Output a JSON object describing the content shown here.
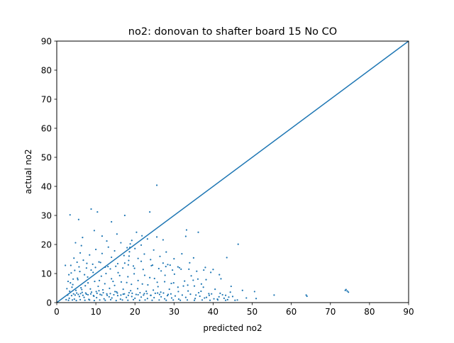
{
  "chart_data": {
    "type": "scatter",
    "title": "no2: donovan to shafter board 15 No CO",
    "xlabel": "predicted no2",
    "ylabel": "actual no2",
    "xlim": [
      0,
      90
    ],
    "ylim": [
      0,
      90
    ],
    "xticks": [
      "0",
      "10",
      "20",
      "30",
      "40",
      "50",
      "60",
      "70",
      "80",
      "90"
    ],
    "yticks": [
      "0",
      "10",
      "20",
      "30",
      "40",
      "50",
      "60",
      "70",
      "80",
      "90"
    ],
    "grid": false,
    "legend": "none",
    "series": [
      {
        "kind": "scatter",
        "color": "#1f77b4",
        "points": [
          [
            3.2,
            1.5
          ],
          [
            3.8,
            2.4
          ],
          [
            4.5,
            1.2
          ],
          [
            5.1,
            3.3
          ],
          [
            5.8,
            2.1
          ],
          [
            6.4,
            4.5
          ],
          [
            7.0,
            1.8
          ],
          [
            7.6,
            2.9
          ],
          [
            8.2,
            1.1
          ],
          [
            8.9,
            3.6
          ],
          [
            9.5,
            2.2
          ],
          [
            10.2,
            1.7
          ],
          [
            10.8,
            4.1
          ],
          [
            11.5,
            2.6
          ],
          [
            12.1,
            1.3
          ],
          [
            12.8,
            3.0
          ],
          [
            13.4,
            2.0
          ],
          [
            14.1,
            1.6
          ],
          [
            14.9,
            3.8
          ],
          [
            15.6,
            2.4
          ],
          [
            16.3,
            1.2
          ],
          [
            17.0,
            2.9
          ],
          [
            17.8,
            1.8
          ],
          [
            18.5,
            3.4
          ],
          [
            19.2,
            2.1
          ],
          [
            20.0,
            1.5
          ],
          [
            20.8,
            2.7
          ],
          [
            21.6,
            1.9
          ],
          [
            22.4,
            3.1
          ],
          [
            23.2,
            1.4
          ],
          [
            24.0,
            2.5
          ],
          [
            24.9,
            1.7
          ],
          [
            25.8,
            3.3
          ],
          [
            26.7,
            2.0
          ],
          [
            27.6,
            1.3
          ],
          [
            28.5,
            2.8
          ],
          [
            29.4,
            1.6
          ],
          [
            30.3,
            2.3
          ],
          [
            31.2,
            1.2
          ],
          [
            32.1,
            2.6
          ],
          [
            33.0,
            1.8
          ],
          [
            34.2,
            2.9
          ],
          [
            35.4,
            1.4
          ],
          [
            36.6,
            2.2
          ],
          [
            37.8,
            1.6
          ],
          [
            39.0,
            2.5
          ],
          [
            40.2,
            1.3
          ],
          [
            41.5,
            2.0
          ],
          [
            42.8,
            1.5
          ],
          [
            44.0,
            1.9
          ],
          [
            4.1,
            6.2
          ],
          [
            5.3,
            8.4
          ],
          [
            6.2,
            5.1
          ],
          [
            7.1,
            9.6
          ],
          [
            8.0,
            6.8
          ],
          [
            8.8,
            11.2
          ],
          [
            9.7,
            7.3
          ],
          [
            10.6,
            5.6
          ],
          [
            11.4,
            9.1
          ],
          [
            12.3,
            6.5
          ],
          [
            13.1,
            12.4
          ],
          [
            14.0,
            8.2
          ],
          [
            14.8,
            5.9
          ],
          [
            15.7,
            10.3
          ],
          [
            16.5,
            7.1
          ],
          [
            17.4,
            13.6
          ],
          [
            18.2,
            8.9
          ],
          [
            19.1,
            6.3
          ],
          [
            19.9,
            11.8
          ],
          [
            20.8,
            7.6
          ],
          [
            21.6,
            14.2
          ],
          [
            22.5,
            9.4
          ],
          [
            23.3,
            6.1
          ],
          [
            24.2,
            12.7
          ],
          [
            25.0,
            8.3
          ],
          [
            25.9,
            5.5
          ],
          [
            26.7,
            10.9
          ],
          [
            27.6,
            7.2
          ],
          [
            28.4,
            13.1
          ],
          [
            29.3,
            6.6
          ],
          [
            30.1,
            9.8
          ],
          [
            31.0,
            5.3
          ],
          [
            31.8,
            11.5
          ],
          [
            32.7,
            7.4
          ],
          [
            33.5,
            6.0
          ],
          [
            34.4,
            9.2
          ],
          [
            35.2,
            5.7
          ],
          [
            36.1,
            8.1
          ],
          [
            37.0,
            6.4
          ],
          [
            38.2,
            7.9
          ],
          [
            3.6,
            12.8
          ],
          [
            4.4,
            15.3
          ],
          [
            5.2,
            13.9
          ],
          [
            6.0,
            17.1
          ],
          [
            6.8,
            14.6
          ],
          [
            7.6,
            11.9
          ],
          [
            8.4,
            16.4
          ],
          [
            9.2,
            13.2
          ],
          [
            10.0,
            18.3
          ],
          [
            10.8,
            14.0
          ],
          [
            11.6,
            16.9
          ],
          [
            12.4,
            12.2
          ],
          [
            13.2,
            19.1
          ],
          [
            14.0,
            15.6
          ],
          [
            14.8,
            17.8
          ],
          [
            15.6,
            13.4
          ],
          [
            16.4,
            20.6
          ],
          [
            17.2,
            16.2
          ],
          [
            18.0,
            18.9
          ],
          [
            18.5,
            16.0
          ],
          [
            18.6,
            17.5
          ],
          [
            18.7,
            19.0
          ],
          [
            18.4,
            14.5
          ],
          [
            18.8,
            20.2
          ],
          [
            18.3,
            13.0
          ],
          [
            19.2,
            21.4
          ],
          [
            20.0,
            18.6
          ],
          [
            20.8,
            15.2
          ],
          [
            21.6,
            19.8
          ],
          [
            22.4,
            16.7
          ],
          [
            23.2,
            21.9
          ],
          [
            24.0,
            14.8
          ],
          [
            24.8,
            18.1
          ],
          [
            25.6,
            22.6
          ],
          [
            26.4,
            15.9
          ],
          [
            27.2,
            13.6
          ],
          [
            28.0,
            17.4
          ],
          [
            29.0,
            12.9
          ],
          [
            30.0,
            15.1
          ],
          [
            31.0,
            12.3
          ],
          [
            32.0,
            16.8
          ],
          [
            33.0,
            22.8
          ],
          [
            34.0,
            13.7
          ],
          [
            35.0,
            15.4
          ],
          [
            36.2,
            24.2
          ],
          [
            38.0,
            12.1
          ],
          [
            40.0,
            11.4
          ],
          [
            42.0,
            8.2
          ],
          [
            43.5,
            15.5
          ],
          [
            44.6,
            5.6
          ],
          [
            3.4,
            30.2
          ],
          [
            5.6,
            28.6
          ],
          [
            8.8,
            32.2
          ],
          [
            10.4,
            31.2
          ],
          [
            11.6,
            22.9
          ],
          [
            14.0,
            27.8
          ],
          [
            17.4,
            30.0
          ],
          [
            20.4,
            24.2
          ],
          [
            23.8,
            31.2
          ],
          [
            25.6,
            40.4
          ],
          [
            4.8,
            20.6
          ],
          [
            6.6,
            22.4
          ],
          [
            9.6,
            24.8
          ],
          [
            12.8,
            21.2
          ],
          [
            15.4,
            23.6
          ],
          [
            21.8,
            23.0
          ],
          [
            27.2,
            21.6
          ],
          [
            33.2,
            25.0
          ],
          [
            46.4,
            20.1
          ],
          [
            2.2,
            12.8
          ],
          [
            2.6,
            4.8
          ],
          [
            2.9,
            7.3
          ],
          [
            3.1,
            9.6
          ],
          [
            3.3,
            3.9
          ],
          [
            3.5,
            6.8
          ],
          [
            3.7,
            10.2
          ],
          [
            3.9,
            5.3
          ],
          [
            4.2,
            8.1
          ],
          [
            4.6,
            11.1
          ],
          [
            4.9,
            4.2
          ],
          [
            5.4,
            7.9
          ],
          [
            5.9,
            10.7
          ],
          [
            6.5,
            3.5
          ],
          [
            7.3,
            5.8
          ],
          [
            7.9,
            8.8
          ],
          [
            8.6,
            4.7
          ],
          [
            9.3,
            10.4
          ],
          [
            10.1,
            3.8
          ],
          [
            10.9,
            7.6
          ],
          [
            11.8,
            4.4
          ],
          [
            12.6,
            10.0
          ],
          [
            13.5,
            4.9
          ],
          [
            14.4,
            7.3
          ],
          [
            15.3,
            3.7
          ],
          [
            16.1,
            9.3
          ],
          [
            17.0,
            4.6
          ],
          [
            17.9,
            6.9
          ],
          [
            18.9,
            4.1
          ],
          [
            19.8,
            9.9
          ],
          [
            20.7,
            4.8
          ],
          [
            21.9,
            6.4
          ],
          [
            22.9,
            3.9
          ],
          [
            23.8,
            8.6
          ],
          [
            24.7,
            4.3
          ],
          [
            25.7,
            7.0
          ],
          [
            26.6,
            3.6
          ],
          [
            27.7,
            9.4
          ],
          [
            28.8,
            4.6
          ],
          [
            29.9,
            6.8
          ],
          [
            31.1,
            3.8
          ],
          [
            32.4,
            5.7
          ],
          [
            33.6,
            4.0
          ],
          [
            34.9,
            7.7
          ],
          [
            36.3,
            3.4
          ],
          [
            37.5,
            5.3
          ],
          [
            38.9,
            3.1
          ],
          [
            40.5,
            4.6
          ],
          [
            41.8,
            3.2
          ],
          [
            43.2,
            2.5
          ],
          [
            44.4,
            3.6
          ],
          [
            47.5,
            4.2
          ],
          [
            50.6,
            3.8
          ],
          [
            51.0,
            1.4
          ],
          [
            55.6,
            2.6
          ],
          [
            63.8,
            2.6
          ],
          [
            64.0,
            2.2
          ],
          [
            74.0,
            4.5
          ],
          [
            74.3,
            4.0
          ],
          [
            74.6,
            3.6
          ],
          [
            73.8,
            4.2
          ],
          [
            35.6,
            2.6
          ],
          [
            36.9,
            3.9
          ],
          [
            38.3,
            1.8
          ],
          [
            39.6,
            3.0
          ],
          [
            41.1,
            1.2
          ],
          [
            42.4,
            2.7
          ],
          [
            43.7,
            1.0
          ],
          [
            45.0,
            2.1
          ],
          [
            46.2,
            0.9
          ],
          [
            48.5,
            1.6
          ],
          [
            2.4,
            1.0
          ],
          [
            2.8,
            2.6
          ],
          [
            3.0,
            0.8
          ],
          [
            4.0,
            0.9
          ],
          [
            5.0,
            0.7
          ],
          [
            6.0,
            1.0
          ],
          [
            7.2,
            0.8
          ],
          [
            8.4,
            0.9
          ],
          [
            9.6,
            0.7
          ],
          [
            11.0,
            0.9
          ],
          [
            12.4,
            0.8
          ],
          [
            13.8,
            1.0
          ],
          [
            15.2,
            0.7
          ],
          [
            16.8,
            0.9
          ],
          [
            18.2,
            0.8
          ],
          [
            19.6,
            1.0
          ],
          [
            21.2,
            0.8
          ],
          [
            22.6,
            0.9
          ],
          [
            24.4,
            0.8
          ],
          [
            26.2,
            0.9
          ],
          [
            28.0,
            0.8
          ],
          [
            29.8,
            0.9
          ],
          [
            31.6,
            0.8
          ],
          [
            33.4,
            0.9
          ],
          [
            35.2,
            0.8
          ],
          [
            37.2,
            0.9
          ],
          [
            39.2,
            0.8
          ],
          [
            41.2,
            0.9
          ],
          [
            43.2,
            0.8
          ],
          [
            45.6,
            0.8
          ],
          [
            4.3,
            3.0
          ],
          [
            4.7,
            2.6
          ],
          [
            5.5,
            2.8
          ],
          [
            6.1,
            3.1
          ],
          [
            6.7,
            2.5
          ],
          [
            7.4,
            3.3
          ],
          [
            8.0,
            2.7
          ],
          [
            8.7,
            3.0
          ],
          [
            9.4,
            2.4
          ],
          [
            10.3,
            3.2
          ],
          [
            11.1,
            2.8
          ],
          [
            11.9,
            3.4
          ],
          [
            12.9,
            2.5
          ],
          [
            13.7,
            3.1
          ],
          [
            14.6,
            2.7
          ],
          [
            15.5,
            3.3
          ],
          [
            16.4,
            2.6
          ],
          [
            17.3,
            3.0
          ],
          [
            18.3,
            2.5
          ],
          [
            19.3,
            3.2
          ],
          [
            20.3,
            2.8
          ],
          [
            21.3,
            3.4
          ],
          [
            22.2,
            2.6
          ],
          [
            23.1,
            3.1
          ],
          [
            24.1,
            2.5
          ],
          [
            25.2,
            3.2
          ],
          [
            26.3,
            2.8
          ],
          [
            27.3,
            3.3
          ],
          [
            28.3,
            2.4
          ],
          [
            29.2,
            3.0
          ],
          [
            5.7,
            12.3
          ],
          [
            7.7,
            13.5
          ],
          [
            9.9,
            12.1
          ],
          [
            11.2,
            13.8
          ],
          [
            13.7,
            11.6
          ],
          [
            15.1,
            12.5
          ],
          [
            16.9,
            11.9
          ],
          [
            19.6,
            12.6
          ],
          [
            22.1,
            11.4
          ],
          [
            24.5,
            12.9
          ],
          [
            26.1,
            11.7
          ],
          [
            27.9,
            12.4
          ],
          [
            29.6,
            11.2
          ],
          [
            31.4,
            12.0
          ],
          [
            33.8,
            11.5
          ],
          [
            35.8,
            10.8
          ],
          [
            37.6,
            11.2
          ],
          [
            39.4,
            10.4
          ],
          [
            41.6,
            9.6
          ],
          [
            6.3,
            19.6
          ]
        ]
      },
      {
        "kind": "line",
        "color": "#1f77b4",
        "points": [
          [
            0,
            0
          ],
          [
            90,
            90
          ]
        ]
      }
    ]
  }
}
